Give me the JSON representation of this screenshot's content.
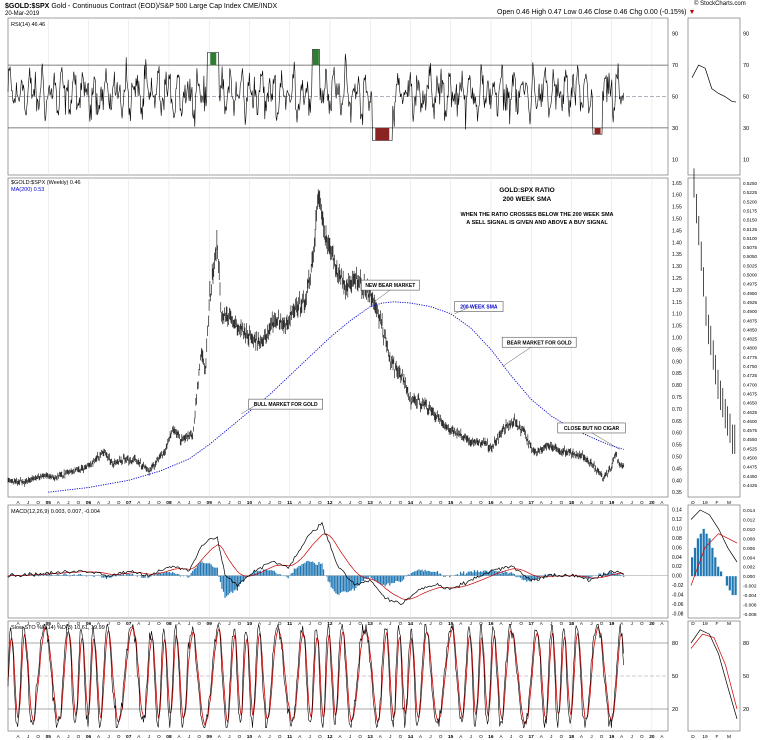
{
  "header": {
    "symbol": "$GOLD:$SPX",
    "description": "Gold - Continuous Contract (EOD)/S&P 500 Large Cap Index  CME/INDX",
    "date": "20-Mar-2019",
    "ohlc": "Open 0.46  High 0.47  Low 0.46  Close 0.46  Chg 0.00 (-0.15%)",
    "ohlc_arrow": "▼",
    "watermark": "© StockCharts.com"
  },
  "colors": {
    "price": "#000000",
    "sma": "#0000cc",
    "macd_signal": "#cc0000",
    "hist": "#1f77b4",
    "rsi_hi": "#2e7d32",
    "rsi_lo": "#8b2323",
    "grid": "#dddddd"
  },
  "chart_data": [
    {
      "type": "line",
      "panel": "rsi",
      "legend": "RSI(14) 46.46",
      "ylim": [
        0,
        100
      ],
      "yticks": [
        10,
        30,
        50,
        70,
        90
      ],
      "levels": [
        30,
        50,
        70
      ],
      "note": "RSI oscillates mostly 35-70; overbought spikes near 2009, 2011 and oversold near 2013, 2018"
    },
    {
      "type": "line",
      "panel": "price",
      "legend": [
        "$GOLD:$SPX (Weekly) 0.46",
        "MA(200) 0.53"
      ],
      "title": "GOLD:SPX RATIO",
      "subtitle": "200 WEEK SMA",
      "note_text": "WHEN THE RATIO CROSSES BELOW THE 200 WEEK SMA A SELL SIGNAL IS GIVEN AND ABOVE A BUY SIGNAL",
      "yticks": [
        0.35,
        0.4,
        0.45,
        0.5,
        0.55,
        0.6,
        0.65,
        0.7,
        0.75,
        0.8,
        0.85,
        0.9,
        0.95,
        1.0,
        1.05,
        1.1,
        1.15,
        1.2,
        1.25,
        1.3,
        1.35,
        1.4,
        1.45,
        1.5,
        1.55,
        1.6,
        1.65
      ],
      "ylim": [
        0.33,
        1.67
      ],
      "xlim": [
        2004.0,
        2020.4
      ],
      "ratio_points": [
        [
          2004.0,
          0.4
        ],
        [
          2004.4,
          0.39
        ],
        [
          2004.8,
          0.42
        ],
        [
          2005.2,
          0.41
        ],
        [
          2005.6,
          0.44
        ],
        [
          2005.9,
          0.45
        ],
        [
          2006.2,
          0.49
        ],
        [
          2006.4,
          0.52
        ],
        [
          2006.6,
          0.47
        ],
        [
          2006.9,
          0.49
        ],
        [
          2007.2,
          0.48
        ],
        [
          2007.5,
          0.44
        ],
        [
          2007.9,
          0.52
        ],
        [
          2008.1,
          0.62
        ],
        [
          2008.3,
          0.57
        ],
        [
          2008.6,
          0.6
        ],
        [
          2008.8,
          0.95
        ],
        [
          2008.9,
          0.85
        ],
        [
          2009.0,
          1.15
        ],
        [
          2009.2,
          1.4
        ],
        [
          2009.3,
          1.1
        ],
        [
          2009.5,
          1.08
        ],
        [
          2009.8,
          1.03
        ],
        [
          2010.0,
          1.0
        ],
        [
          2010.3,
          0.98
        ],
        [
          2010.6,
          1.08
        ],
        [
          2010.9,
          1.05
        ],
        [
          2011.1,
          1.12
        ],
        [
          2011.4,
          1.15
        ],
        [
          2011.6,
          1.35
        ],
        [
          2011.7,
          1.62
        ],
        [
          2011.8,
          1.5
        ],
        [
          2011.9,
          1.42
        ],
        [
          2012.0,
          1.37
        ],
        [
          2012.2,
          1.26
        ],
        [
          2012.4,
          1.22
        ],
        [
          2012.7,
          1.23
        ],
        [
          2012.9,
          1.2
        ],
        [
          2013.1,
          1.15
        ],
        [
          2013.3,
          1.05
        ],
        [
          2013.5,
          0.9
        ],
        [
          2013.8,
          0.84
        ],
        [
          2014.0,
          0.73
        ],
        [
          2014.3,
          0.73
        ],
        [
          2014.6,
          0.68
        ],
        [
          2014.9,
          0.62
        ],
        [
          2015.2,
          0.6
        ],
        [
          2015.5,
          0.56
        ],
        [
          2015.8,
          0.56
        ],
        [
          2016.0,
          0.53
        ],
        [
          2016.3,
          0.61
        ],
        [
          2016.6,
          0.65
        ],
        [
          2016.9,
          0.58
        ],
        [
          2017.1,
          0.51
        ],
        [
          2017.4,
          0.55
        ],
        [
          2017.7,
          0.52
        ],
        [
          2018.0,
          0.52
        ],
        [
          2018.3,
          0.5
        ],
        [
          2018.6,
          0.45
        ],
        [
          2018.8,
          0.41
        ],
        [
          2019.0,
          0.46
        ],
        [
          2019.1,
          0.52
        ],
        [
          2019.2,
          0.47
        ],
        [
          2019.3,
          0.46
        ]
      ],
      "sma_points": [
        [
          2005.0,
          0.35
        ],
        [
          2006.0,
          0.37
        ],
        [
          2007.0,
          0.4
        ],
        [
          2007.8,
          0.44
        ],
        [
          2008.5,
          0.49
        ],
        [
          2009.0,
          0.55
        ],
        [
          2009.5,
          0.62
        ],
        [
          2010.0,
          0.69
        ],
        [
          2010.5,
          0.76
        ],
        [
          2011.0,
          0.84
        ],
        [
          2011.5,
          0.92
        ],
        [
          2012.0,
          1.0
        ],
        [
          2012.5,
          1.07
        ],
        [
          2013.0,
          1.13
        ],
        [
          2013.3,
          1.145
        ],
        [
          2013.6,
          1.15
        ],
        [
          2014.0,
          1.145
        ],
        [
          2014.5,
          1.13
        ],
        [
          2015.0,
          1.1
        ],
        [
          2015.5,
          1.04
        ],
        [
          2016.0,
          0.95
        ],
        [
          2016.5,
          0.84
        ],
        [
          2017.0,
          0.74
        ],
        [
          2017.5,
          0.67
        ],
        [
          2018.0,
          0.62
        ],
        [
          2018.5,
          0.58
        ],
        [
          2019.0,
          0.545
        ],
        [
          2019.3,
          0.53
        ]
      ],
      "annotations": [
        {
          "text": "NEW BEAR MARKET",
          "x": 2013.5,
          "y": 1.22
        },
        {
          "text": "200 WEEK SMA",
          "x": 2015.7,
          "y": 1.13
        },
        {
          "text": "BEAR MARKET FOR GOLD",
          "x": 2017.2,
          "y": 0.98
        },
        {
          "text": "BULL MARKET FOR GOLD",
          "x": 2010.9,
          "y": 0.72
        },
        {
          "text": "CLOSE BUT NO CIGAR",
          "x": 2018.5,
          "y": 0.62
        }
      ]
    },
    {
      "type": "line",
      "panel": "macd",
      "legend": [
        "MACD(12,26,9) 0.003, 0.007, -0.004"
      ],
      "yticks": [
        -0.08,
        -0.06,
        -0.04,
        -0.02,
        0.0,
        0.02,
        0.04,
        0.06,
        0.08,
        0.1,
        0.12,
        0.14
      ],
      "ylim": [
        -0.09,
        0.15
      ],
      "macd_points": [
        [
          2004.0,
          0.0
        ],
        [
          2005.0,
          0.005
        ],
        [
          2006.0,
          0.01
        ],
        [
          2006.5,
          0.0
        ],
        [
          2007.0,
          0.01
        ],
        [
          2007.5,
          0.0
        ],
        [
          2008.0,
          0.02
        ],
        [
          2008.5,
          0.01
        ],
        [
          2008.8,
          0.06
        ],
        [
          2009.0,
          0.08
        ],
        [
          2009.2,
          0.08
        ],
        [
          2009.4,
          0.0
        ],
        [
          2009.7,
          -0.02
        ],
        [
          2010.0,
          0.0
        ],
        [
          2010.5,
          0.03
        ],
        [
          2011.0,
          0.02
        ],
        [
          2011.5,
          0.09
        ],
        [
          2011.8,
          0.11
        ],
        [
          2012.2,
          0.02
        ],
        [
          2012.6,
          -0.02
        ],
        [
          2013.0,
          -0.01
        ],
        [
          2013.4,
          -0.05
        ],
        [
          2013.8,
          -0.06
        ],
        [
          2014.2,
          -0.03
        ],
        [
          2014.6,
          -0.02
        ],
        [
          2015.0,
          -0.03
        ],
        [
          2015.5,
          -0.01
        ],
        [
          2016.0,
          0.01
        ],
        [
          2016.5,
          0.02
        ],
        [
          2017.0,
          -0.01
        ],
        [
          2017.5,
          0.0
        ],
        [
          2018.0,
          0.0
        ],
        [
          2018.5,
          -0.01
        ],
        [
          2019.0,
          0.01
        ],
        [
          2019.3,
          0.003
        ]
      ]
    },
    {
      "type": "line",
      "panel": "sto",
      "legend": "Slow STO %K(14) %D(3) 10.61, 19.99",
      "yticks": [
        20,
        50,
        80
      ],
      "ylim": [
        0,
        100
      ],
      "levels": [
        20,
        50,
        80
      ]
    }
  ],
  "x_axis": {
    "years": [
      "05",
      "06",
      "07",
      "08",
      "09",
      "10",
      "11",
      "12",
      "13",
      "14",
      "15",
      "16",
      "17",
      "18",
      "19",
      "20"
    ],
    "months": [
      "A",
      "J",
      "O"
    ]
  },
  "zoom": {
    "x_labels": [
      "D",
      "19",
      "F",
      "M"
    ],
    "price_ticks": [
      "0.5250",
      "0.5225",
      "0.5200",
      "0.5175",
      "0.5150",
      "0.5125",
      "0.5100",
      "0.5075",
      "0.5050",
      "0.5025",
      "0.5000",
      "0.4975",
      "0.4950",
      "0.4925",
      "0.4900",
      "0.4875",
      "0.4850",
      "0.4825",
      "0.4800",
      "0.4775",
      "0.4750",
      "0.4725",
      "0.4700",
      "0.4675",
      "0.4650",
      "0.4625",
      "0.4600",
      "0.4575",
      "0.4550",
      "0.4525",
      "0.4500",
      "0.4475",
      "0.4450",
      "0.4425"
    ],
    "macd_ticks": [
      "0.014",
      "0.012",
      "0.010",
      "0.008",
      "0.006",
      "0.004",
      "0.002",
      "0.000",
      "-0.002",
      "-0.004",
      "-0.006",
      "-0.008"
    ],
    "rsi_ticks": [
      "90",
      "70",
      "50",
      "30",
      "10"
    ],
    "sto_ticks": [
      "80",
      "50",
      "20"
    ]
  }
}
